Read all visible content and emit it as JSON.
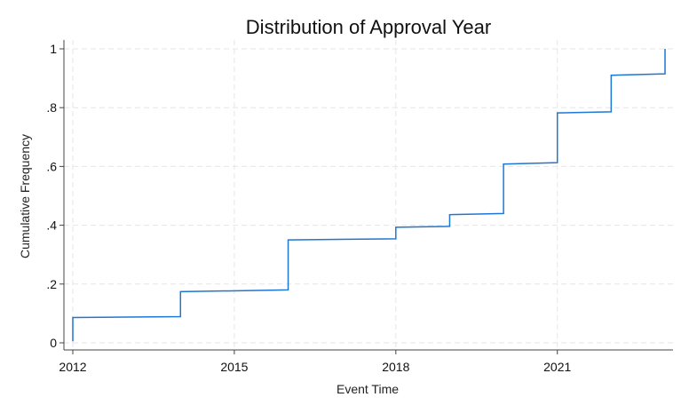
{
  "chart_data": {
    "type": "line",
    "title": "Distribution of Approval Year",
    "xlabel": "Event Time",
    "ylabel": "Cumulative Frequency",
    "xlim": [
      2012,
      2023
    ],
    "ylim": [
      0,
      1
    ],
    "x_ticks": [
      2012,
      2015,
      2018,
      2021
    ],
    "x_tick_labels": [
      "2012",
      "2015",
      "2018",
      "2021"
    ],
    "y_ticks": [
      0,
      0.2,
      0.4,
      0.6,
      0.8,
      1
    ],
    "y_tick_labels": [
      "0",
      ".2",
      ".4",
      ".6",
      ".8",
      "1"
    ],
    "grid": true,
    "line_color": "#1f77d4",
    "step_series": [
      {
        "x_start": 2012.0,
        "x_end": 2014.0,
        "y_start": 0.086,
        "y_end": 0.089
      },
      {
        "x_start": 2014.0,
        "x_end": 2016.0,
        "y_start": 0.174,
        "y_end": 0.18
      },
      {
        "x_start": 2016.0,
        "x_end": 2018.0,
        "y_start": 0.35,
        "y_end": 0.354
      },
      {
        "x_start": 2018.0,
        "x_end": 2019.0,
        "y_start": 0.393,
        "y_end": 0.396
      },
      {
        "x_start": 2019.0,
        "x_end": 2020.0,
        "y_start": 0.436,
        "y_end": 0.44
      },
      {
        "x_start": 2020.0,
        "x_end": 2021.0,
        "y_start": 0.608,
        "y_end": 0.613
      },
      {
        "x_start": 2021.0,
        "x_end": 2022.0,
        "y_start": 0.782,
        "y_end": 0.786
      },
      {
        "x_start": 2022.0,
        "x_end": 2023.0,
        "y_start": 0.91,
        "y_end": 0.915
      }
    ],
    "start_point": [
      2012.0,
      0.005
    ],
    "end_point": [
      2023.0,
      1.0
    ]
  }
}
